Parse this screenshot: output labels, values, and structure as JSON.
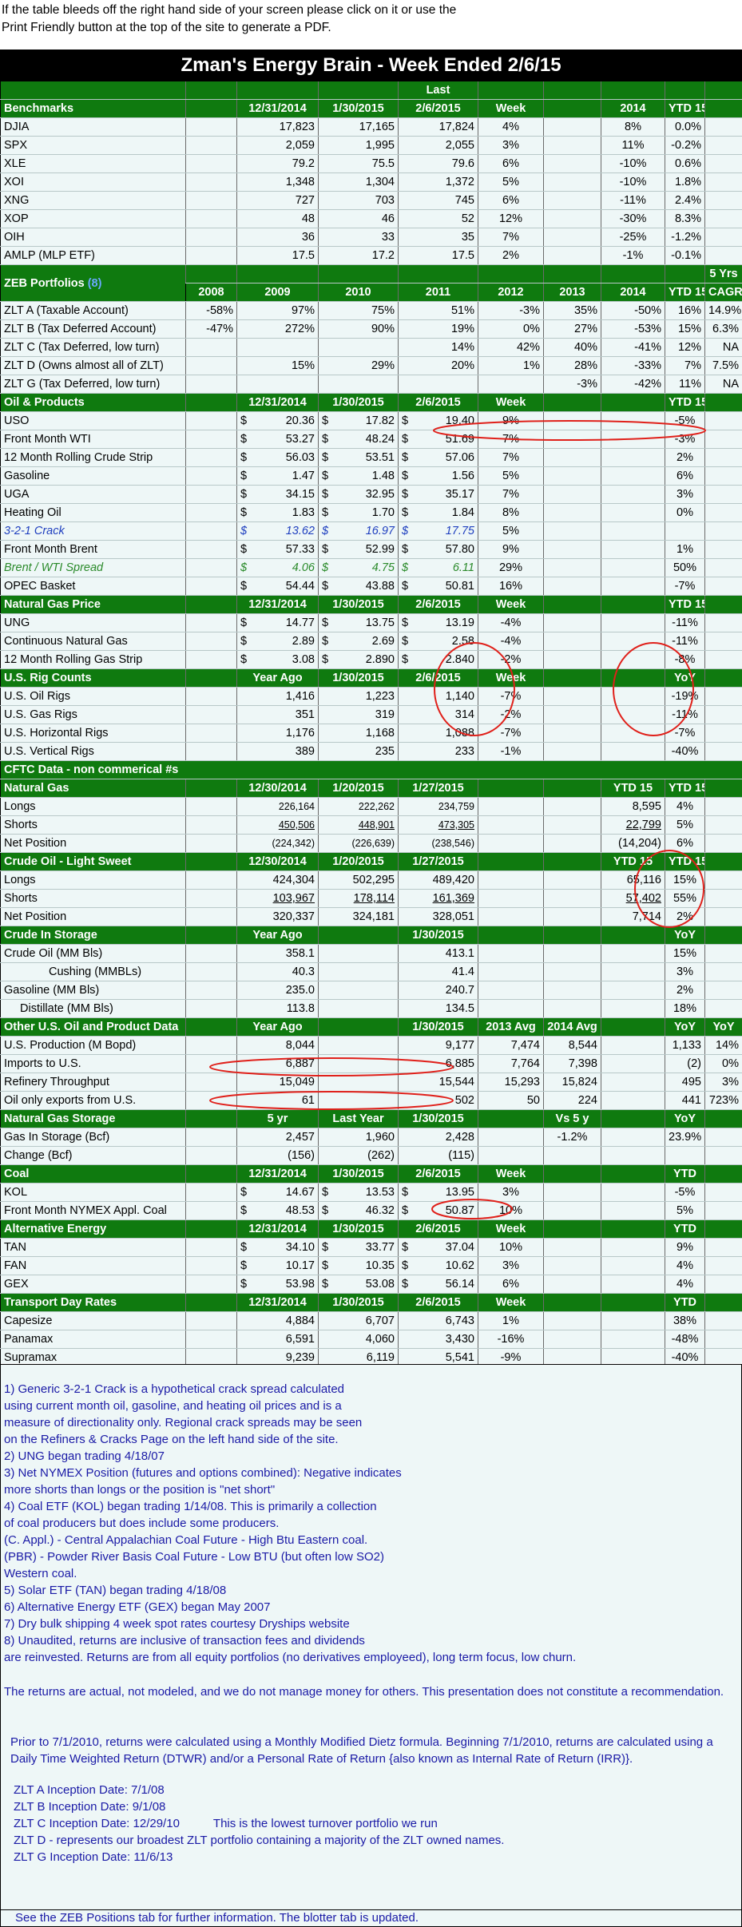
{
  "intro": {
    "line1": "If the table bleeds off the right hand side of your screen please click on it or use the",
    "line2": "Print Friendly button at the top of the site to generate a PDF."
  },
  "title": "Zman's Energy Brain - Week Ended 2/6/15",
  "last_label": "Last",
  "colors": {
    "header_green": "#0f7a0f",
    "annotation_red": "#e0201a",
    "note_blue": "#1a1aa6"
  },
  "benchmarks": {
    "header": [
      "Benchmarks",
      "12/31/2014",
      "1/30/2015",
      "2/6/2015",
      "Week",
      "2014",
      "YTD 15",
      ""
    ],
    "rows": [
      [
        "DJIA",
        "17,823",
        "17,165",
        "17,824",
        "4%",
        "8%",
        "0.0%"
      ],
      [
        "SPX",
        "2,059",
        "1,995",
        "2,055",
        "3%",
        "11%",
        "-0.2%"
      ],
      [
        "XLE",
        "79.2",
        "75.5",
        "79.6",
        "6%",
        "-10%",
        "0.6%"
      ],
      [
        "XOI",
        "1,348",
        "1,304",
        "1,372",
        "5%",
        "-10%",
        "1.8%"
      ],
      [
        "XNG",
        "727",
        "703",
        "745",
        "6%",
        "-11%",
        "2.4%"
      ],
      [
        "XOP",
        "48",
        "46",
        "52",
        "12%",
        "-30%",
        "8.3%"
      ],
      [
        "OIH",
        "36",
        "33",
        "35",
        "7%",
        "-25%",
        "-1.2%"
      ],
      [
        "AMLP (MLP ETF)",
        "17.5",
        "17.2",
        "17.5",
        "2%",
        "-1%",
        "-0.1%"
      ]
    ]
  },
  "zeb": {
    "title": "ZEB Portfolios",
    "note": "(8)",
    "header_top_last": "5 Yrs",
    "header": [
      "2008",
      "2009",
      "2010",
      "2011",
      "2012",
      "2013",
      "2014",
      "YTD 15",
      "CAGR"
    ],
    "rows": [
      [
        "ZLT A (Taxable Account)",
        "-58%",
        "97%",
        "75%",
        "51%",
        "-3%",
        "35%",
        "-50%",
        "16%",
        "14.9%"
      ],
      [
        "ZLT B (Tax Deferred Account)",
        "-47%",
        "272%",
        "90%",
        "19%",
        "0%",
        "27%",
        "-53%",
        "15%",
        "6.3%"
      ],
      [
        "ZLT C (Tax Deferred, low turn)",
        "",
        "",
        "",
        "14%",
        "42%",
        "40%",
        "-41%",
        "12%",
        "NA"
      ],
      [
        "ZLT D (Owns almost all of ZLT)",
        "",
        "15%",
        "29%",
        "20%",
        "1%",
        "28%",
        "-33%",
        "7%",
        "7.5%"
      ],
      [
        "ZLT G (Tax Deferred, low turn)",
        "",
        "",
        "",
        "",
        "",
        "-3%",
        "-42%",
        "11%",
        "NA"
      ]
    ]
  },
  "oil": {
    "header": [
      "Oil & Products",
      "12/31/2014",
      "1/30/2015",
      "2/6/2015",
      "Week",
      "YTD 15"
    ],
    "rows": [
      [
        "USO",
        "20.36",
        "17.82",
        "19.40",
        "9%",
        "-5%"
      ],
      [
        "Front Month WTI",
        "53.27",
        "48.24",
        "51.69",
        "7%",
        "-3%"
      ],
      [
        "12 Month Rolling Crude Strip",
        "56.03",
        "53.51",
        "57.06",
        "7%",
        "2%"
      ],
      [
        "Gasoline",
        "1.47",
        "1.48",
        "1.56",
        "5%",
        "6%"
      ],
      [
        "UGA",
        "34.15",
        "32.95",
        "35.17",
        "7%",
        "3%"
      ],
      [
        "Heating Oil",
        "1.83",
        "1.70",
        "1.84",
        "8%",
        "0%"
      ],
      [
        "3-2-1 Crack",
        "13.62",
        "16.97",
        "17.75",
        "5%",
        ""
      ],
      [
        "Front Month Brent",
        "57.33",
        "52.99",
        "57.80",
        "9%",
        "1%"
      ],
      [
        "Brent / WTI Spread",
        "4.06",
        "4.75",
        "6.11",
        "29%",
        "50%"
      ],
      [
        "OPEC Basket",
        "54.44",
        "43.88",
        "50.81",
        "16%",
        "-7%"
      ]
    ]
  },
  "natgas": {
    "header": [
      "Natural Gas Price",
      "12/31/2014",
      "1/30/2015",
      "2/6/2015",
      "Week",
      "YTD 15"
    ],
    "rows": [
      [
        "UNG",
        "14.77",
        "13.75",
        "13.19",
        "-4%",
        "-11%"
      ],
      [
        "Continuous Natural Gas",
        "2.89",
        "2.69",
        "2.58",
        "-4%",
        "-11%"
      ],
      [
        "12 Month Rolling Gas Strip",
        "3.08",
        "2.890",
        "2.840",
        "-2%",
        "-8%"
      ]
    ]
  },
  "rigs": {
    "header": [
      "U.S. Rig Counts",
      "Year Ago",
      "1/30/2015",
      "2/6/2015",
      "Week",
      "YoY"
    ],
    "rows": [
      [
        "U.S. Oil Rigs",
        "1,416",
        "1,223",
        "1,140",
        "-7%",
        "-19%"
      ],
      [
        "U.S. Gas Rigs",
        "351",
        "319",
        "314",
        "-2%",
        "-11%"
      ],
      [
        "U.S. Horizontal Rigs",
        "1,176",
        "1,168",
        "1,088",
        "-7%",
        "-7%"
      ],
      [
        "U.S. Vertical Rigs",
        "389",
        "235",
        "233",
        "-1%",
        "-40%"
      ]
    ]
  },
  "cftc": {
    "title": "CFTC Data - non commerical #s",
    "ng_header": [
      "Natural Gas",
      "12/30/2014",
      "1/20/2015",
      "1/27/2015",
      "YTD 15",
      "YTD 15"
    ],
    "ng_rows": [
      [
        "Longs",
        "226,164",
        "222,262",
        "234,759",
        "8,595",
        "4%"
      ],
      [
        "Shorts",
        "450,506",
        "448,901",
        "473,305",
        "22,799",
        "5%"
      ],
      [
        "Net Position",
        "(224,342)",
        "(226,639)",
        "(238,546)",
        "(14,204)",
        "6%"
      ]
    ],
    "co_header": [
      "Crude Oil - Light Sweet",
      "12/30/2014",
      "1/20/2015",
      "1/27/2015",
      "YTD 15",
      "YTD 15"
    ],
    "co_rows": [
      [
        "Longs",
        "424,304",
        "502,295",
        "489,420",
        "65,116",
        "15%"
      ],
      [
        "Shorts",
        "103,967",
        "178,114",
        "161,369",
        "57,402",
        "55%"
      ],
      [
        "Net Position",
        "320,337",
        "324,181",
        "328,051",
        "7,714",
        "2%"
      ]
    ]
  },
  "storage": {
    "header": [
      "Crude In Storage",
      "Year Ago",
      "1/30/2015",
      "YoY"
    ],
    "rows": [
      [
        "Crude Oil (MM Bls)",
        "358.1",
        "413.1",
        "15%"
      ],
      [
        "Cushing (MMBLs)",
        "40.3",
        "41.4",
        "3%"
      ],
      [
        "Gasoline (MM Bls)",
        "235.0",
        "240.7",
        "2%"
      ],
      [
        "Distillate (MM Bls)",
        "113.8",
        "134.5",
        "18%"
      ]
    ]
  },
  "other": {
    "header": [
      "Other U.S. Oil and Product Data",
      "Year Ago",
      "1/30/2015",
      "2013 Avg",
      "2014 Avg",
      "YoY",
      "YoY"
    ],
    "rows": [
      [
        "U.S. Production (M Bopd)",
        "8,044",
        "9,177",
        "7,474",
        "8,544",
        "1,133",
        "14%"
      ],
      [
        "Imports to U.S.",
        "6,887",
        "6,885",
        "7,764",
        "7,398",
        "(2)",
        "0%"
      ],
      [
        "Refinery Throughput",
        "15,049",
        "15,544",
        "15,293",
        "15,824",
        "495",
        "3%"
      ],
      [
        "Oil only exports from U.S.",
        "61",
        "502",
        "50",
        "224",
        "441",
        "723%"
      ]
    ]
  },
  "ngstorage": {
    "header": [
      "Natural Gas Storage",
      "5 yr",
      "Last Year",
      "1/30/2015",
      "Vs 5 y",
      "YoY"
    ],
    "rows": [
      [
        "Gas In Storage (Bcf)",
        "2,457",
        "1,960",
        "2,428",
        "-1.2%",
        "23.9%"
      ],
      [
        "Change (Bcf)",
        "(156)",
        "(262)",
        "(115)",
        "",
        ""
      ]
    ]
  },
  "coal": {
    "header": [
      "Coal",
      "12/31/2014",
      "1/30/2015",
      "2/6/2015",
      "Week",
      "YTD"
    ],
    "rows": [
      [
        "KOL",
        "14.67",
        "13.53",
        "13.95",
        "3%",
        "-5%"
      ],
      [
        "Front Month NYMEX Appl. Coal",
        "48.53",
        "46.32",
        "50.87",
        "10%",
        "5%"
      ]
    ]
  },
  "alt": {
    "header": [
      "Alternative Energy",
      "12/31/2014",
      "1/30/2015",
      "2/6/2015",
      "Week",
      "YTD"
    ],
    "rows": [
      [
        "TAN",
        "34.10",
        "33.77",
        "37.04",
        "10%",
        "9%"
      ],
      [
        "FAN",
        "10.17",
        "10.35",
        "10.62",
        "3%",
        "4%"
      ],
      [
        "GEX",
        "53.98",
        "53.08",
        "56.14",
        "6%",
        "4%"
      ]
    ]
  },
  "transport": {
    "header": [
      "Transport Day Rates",
      "12/31/2014",
      "1/30/2015",
      "2/6/2015",
      "Week",
      "YTD"
    ],
    "rows": [
      [
        "Capesize",
        "4,884",
        "6,707",
        "6,743",
        "1%",
        "38%"
      ],
      [
        "Panamax",
        "6,591",
        "4,060",
        "3,430",
        "-16%",
        "-48%"
      ],
      [
        "Supramax",
        "9,239",
        "6,119",
        "5,541",
        "-9%",
        "-40%"
      ]
    ]
  },
  "notes": {
    "lines": [
      "1) Generic 3-2-1 Crack is a hypothetical crack spread calculated",
      "using current month oil, gasoline, and heating oil prices and is a",
      "measure of directionality only. Regional crack spreads may be seen",
      "on the Refiners & Cracks Page on the left hand side of the site.",
      "2) UNG began trading 4/18/07",
      "3) Net NYMEX Position (futures and options combined): Negative indicates",
      "more shorts than longs or the position is \"net short\"",
      "4) Coal ETF (KOL) began trading 1/14/08. This is primarily a collection",
      "of coal producers but does include some producers.",
      "(C. Appl.) - Central Appalachian Coal Future - High Btu Eastern coal.",
      "(PBR) - Powder River Basis Coal Future - Low BTU (but often low SO2)",
      "Western coal.",
      "5) Solar ETF (TAN) began trading 4/18/08",
      "6) Alternative Energy ETF (GEX) began May 2007",
      "7) Dry bulk shipping 4 week spot rates courtesy Dryships website",
      "8) Unaudited, returns are inclusive of transaction fees and dividends",
      "are reinvested. Returns are from all equity portfolios (no derivatives employeed), long term focus, low churn."
    ],
    "actual": "The returns are actual, not modeled, and we do not manage money for others.  This presentation does not constitute a recommendation.",
    "dietz": "Prior to 7/1/2010, returns were calculated using a Monthly Modified Dietz formula. Beginning 7/1/2010, returns are calculated using a Daily Time Weighted Return (DTWR) and/or a Personal Rate of Return {also known as Internal Rate of Return (IRR)}.",
    "inception": [
      "ZLT A Inception Date: 7/1/08",
      "ZLT B Inception Date: 9/1/08",
      "ZLT C Inception Date: 12/29/10",
      "ZLT D - represents our broadest ZLT portfolio containing a majority of the ZLT owned names.",
      "ZLT G Inception Date: 11/6/13"
    ],
    "zltc_comment": "This is the lowest turnover portfolio we run",
    "footer": "See the ZEB Positions tab for further information. The blotter tab is updated."
  }
}
